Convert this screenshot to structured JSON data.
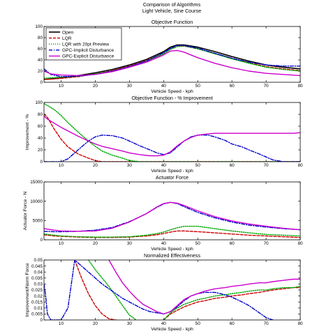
{
  "figure": {
    "title_line1": "Comparison of Algorithms",
    "title_line2": "Light Vehicle, Sine Course"
  },
  "legend": {
    "entries": [
      "Open",
      "LQR",
      "LQR with 20pt Preview",
      "GPC-Implicit Disturbance",
      "GPC-Explicit Disturbance"
    ]
  },
  "series_styles": [
    {
      "color": "#000000",
      "dash": "",
      "width": 1.6
    },
    {
      "color": "#cc0000",
      "dash": "4,2",
      "width": 1.4
    },
    {
      "color": "#00aa00",
      "dash": "1.2,1.8",
      "width": 1.5
    },
    {
      "color": "#0000cc",
      "dash": "5,2,1.2,2",
      "width": 1.4
    },
    {
      "color": "#cc00cc",
      "dash": "",
      "width": 1.4
    }
  ],
  "chart_data": [
    {
      "type": "line",
      "title": "Objective Function",
      "xlabel": "Vehicle Speed - kph",
      "ylabel": "",
      "xlim": [
        5,
        80
      ],
      "ylim": [
        0,
        100
      ],
      "xticks": [
        10,
        20,
        30,
        40,
        50,
        60,
        70,
        80
      ],
      "yticks": [
        0,
        20,
        40,
        60,
        80,
        100
      ],
      "x": [
        5,
        7,
        10,
        15,
        20,
        25,
        30,
        35,
        40,
        42,
        44,
        46,
        50,
        55,
        60,
        65,
        70,
        75,
        80
      ],
      "series": [
        {
          "name": "Open",
          "values": [
            5,
            6,
            8,
            12,
            17,
            23,
            31,
            41,
            55,
            63,
            67,
            67,
            63,
            55,
            46,
            38,
            31,
            27,
            24
          ]
        },
        {
          "name": "LQR",
          "values": [
            5,
            5.5,
            7,
            10,
            15,
            21,
            29,
            39,
            52,
            60,
            65,
            65,
            60,
            52,
            43,
            35,
            28,
            24,
            21
          ]
        },
        {
          "name": "LQR with 20pt Preview",
          "values": [
            7,
            8,
            9,
            11,
            15,
            20,
            28,
            38,
            51,
            59,
            64,
            65,
            60,
            51,
            42,
            34,
            27,
            23,
            20
          ]
        },
        {
          "name": "GPC-Implicit Disturbance",
          "values": [
            24,
            14,
            10,
            11,
            14,
            20,
            28,
            38,
            53,
            61,
            66,
            66,
            61,
            52,
            43,
            36,
            31,
            29,
            29
          ]
        },
        {
          "name": "GPC-Explicit Disturbance",
          "values": [
            20,
            15,
            13,
            12,
            14,
            19,
            27,
            36,
            49,
            56,
            57,
            54,
            44,
            34,
            26,
            20,
            16,
            14,
            12
          ]
        }
      ]
    },
    {
      "type": "line",
      "title": "Objective Function - % Improvement",
      "xlabel": "Vehicle Speed - kph",
      "ylabel": "Improvement - %",
      "xlim": [
        5,
        80
      ],
      "ylim": [
        0,
        100
      ],
      "xticks": [
        10,
        20,
        30,
        40,
        50,
        60,
        70,
        80
      ],
      "yticks": [
        0,
        20,
        40,
        60,
        80,
        100
      ],
      "x": [
        5,
        6,
        8,
        10,
        12,
        15,
        18,
        20,
        22,
        25,
        28,
        30,
        33,
        36,
        38,
        40,
        42,
        44,
        46,
        48,
        50,
        53,
        55,
        58,
        60,
        63,
        65,
        68,
        70,
        72,
        75,
        78,
        80
      ],
      "series": [
        {
          "name": "LQR",
          "values": [
            80,
            75,
            55,
            38,
            25,
            13,
            6,
            2,
            0,
            0,
            0,
            0,
            0,
            0,
            0,
            0,
            0,
            0,
            0,
            0,
            0,
            0,
            0,
            0,
            0,
            0,
            0,
            0,
            0,
            0,
            0,
            0,
            0
          ]
        },
        {
          "name": "LQR with 20pt Preview",
          "values": [
            98,
            95,
            88,
            78,
            66,
            50,
            35,
            26,
            18,
            11,
            6,
            2,
            0,
            0,
            0,
            0,
            0,
            0,
            0,
            0,
            0,
            0,
            0,
            0,
            0,
            0,
            0,
            0,
            0,
            0,
            0,
            0,
            0
          ]
        },
        {
          "name": "GPC-Implicit Disturbance",
          "values": [
            0,
            0,
            0,
            0,
            5,
            20,
            35,
            42,
            45,
            44,
            40,
            35,
            27,
            20,
            15,
            12,
            15,
            25,
            35,
            42,
            45,
            45,
            42,
            36,
            30,
            25,
            20,
            13,
            8,
            3,
            0,
            0,
            0
          ]
        },
        {
          "name": "GPC-Explicit Disturbance",
          "values": [
            77,
            72,
            65,
            58,
            52,
            43,
            35,
            30,
            26,
            22,
            18,
            15,
            12,
            10,
            10,
            11,
            17,
            27,
            35,
            41,
            45,
            47,
            48,
            48,
            48,
            48,
            48,
            48,
            48,
            48,
            48,
            48,
            49
          ]
        }
      ]
    },
    {
      "type": "line",
      "title": "Actuator Force",
      "xlabel": "Vehicle Speed - kph",
      "ylabel": "Actuator Force - N",
      "xlim": [
        5,
        80
      ],
      "ylim": [
        0,
        15000
      ],
      "xticks": [
        10,
        20,
        30,
        40,
        50,
        60,
        70,
        80
      ],
      "yticks": [
        0,
        5000,
        10000,
        15000
      ],
      "x": [
        5,
        8,
        10,
        15,
        20,
        25,
        30,
        35,
        38,
        40,
        42,
        44,
        46,
        50,
        55,
        60,
        65,
        70,
        75,
        80
      ],
      "series": [
        {
          "name": "LQR",
          "values": [
            1300,
            1000,
            900,
            700,
            600,
            600,
            700,
            1000,
            1300,
            1600,
            2000,
            2300,
            2300,
            2100,
            1800,
            1500,
            1200,
            1000,
            800,
            600
          ]
        },
        {
          "name": "LQR with 20pt Preview",
          "values": [
            1500,
            1200,
            1000,
            800,
            700,
            700,
            800,
            1200,
            1600,
            2000,
            2600,
            3100,
            3500,
            3500,
            2900,
            2300,
            1800,
            1400,
            1200,
            1000
          ]
        },
        {
          "name": "GPC-Implicit Disturbance",
          "values": [
            2200,
            2100,
            2100,
            2200,
            2500,
            3200,
            4700,
            6800,
            8400,
            9300,
            9700,
            9400,
            8600,
            7100,
            5700,
            4600,
            3800,
            3300,
            2900,
            2600
          ]
        },
        {
          "name": "GPC-Explicit Disturbance",
          "values": [
            2900,
            2500,
            2300,
            2200,
            2300,
            3000,
            4600,
            6800,
            8500,
            9400,
            9700,
            9500,
            8900,
            7500,
            6000,
            4900,
            4100,
            3500,
            3000,
            2600
          ]
        }
      ]
    },
    {
      "type": "line",
      "title": "Normalized Effectiveness",
      "xlabel": "Vehicle Speed - kph",
      "ylabel": "Improvement/Norm Force",
      "xlim": [
        5,
        80
      ],
      "ylim": [
        0,
        0.05
      ],
      "xticks": [
        10,
        20,
        30,
        40,
        50,
        60,
        70,
        80
      ],
      "yticks": [
        0,
        0.005,
        0.01,
        0.015,
        0.02,
        0.025,
        0.03,
        0.035,
        0.04,
        0.045,
        0.05
      ],
      "x": [
        5,
        5.5,
        6,
        7,
        8,
        10,
        12,
        14,
        16,
        18,
        20,
        22,
        24,
        26,
        28,
        30,
        32,
        34,
        36,
        38,
        40,
        42,
        44,
        46,
        48,
        50,
        52,
        55,
        58,
        60,
        63,
        65,
        68,
        70,
        72,
        75,
        78,
        80
      ],
      "series": [
        {
          "name": "LQR",
          "values": [
            null,
            null,
            null,
            null,
            null,
            null,
            null,
            0.05,
            0.035,
            0.022,
            0.012,
            0.005,
            0.001,
            0,
            null,
            null,
            null,
            null,
            null,
            null,
            0,
            0.005,
            0.008,
            0.011,
            0.013,
            0.015,
            0.016,
            0.018,
            0.019,
            0.02,
            0.021,
            0.022,
            0.023,
            0.024,
            0.025,
            0.026,
            0.027,
            0.027
          ]
        },
        {
          "name": "LQR with 20pt Preview",
          "values": [
            null,
            null,
            null,
            null,
            null,
            null,
            null,
            null,
            null,
            0.05,
            0.042,
            0.035,
            0.028,
            0.02,
            0.012,
            0.004,
            0,
            null,
            null,
            null,
            0,
            0.006,
            0.01,
            0.013,
            0.015,
            0.017,
            0.018,
            0.02,
            0.021,
            0.022,
            0.023,
            0.024,
            0.025,
            0.025,
            0.026,
            0.027,
            0.027,
            0.028
          ]
        },
        {
          "name": "GPC-Implicit Disturbance",
          "values": [
            0.03,
            0.02,
            0.005,
            0,
            0,
            0,
            0.01,
            0.05,
            0.045,
            0.04,
            0.035,
            0.03,
            0.026,
            0.022,
            0.018,
            0.015,
            0.012,
            0.009,
            0.007,
            0.006,
            0.005,
            0.007,
            0.011,
            0.016,
            0.02,
            0.022,
            0.023,
            0.023,
            0.021,
            0.019,
            0.015,
            0.012,
            0.006,
            0.002,
            0,
            null,
            null,
            null
          ]
        },
        {
          "name": "GPC-Explicit Disturbance",
          "values": [
            null,
            null,
            null,
            null,
            null,
            null,
            null,
            null,
            null,
            null,
            null,
            null,
            0.05,
            0.04,
            0.031,
            0.024,
            0.018,
            0.013,
            0.01,
            0.007,
            0.005,
            0.007,
            0.012,
            0.017,
            0.02,
            0.022,
            0.024,
            0.026,
            0.027,
            0.028,
            0.029,
            0.03,
            0.031,
            0.031,
            0.032,
            0.033,
            0.034,
            0.034
          ]
        }
      ]
    }
  ]
}
